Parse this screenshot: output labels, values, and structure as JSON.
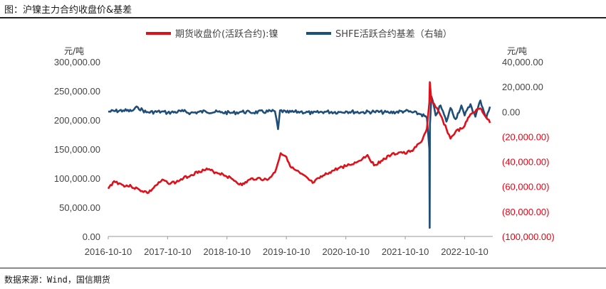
{
  "caption": "图：沪镍主力合约收盘价&基差",
  "source": "数据来源：Wind，国信期货",
  "chart_data": {
    "type": "line",
    "title": "",
    "x_ticks": [
      "2016-10-10",
      "2017-10-10",
      "2018-10-10",
      "2019-10-10",
      "2020-10-10",
      "2021-10-10",
      "2022-10-10"
    ],
    "x_range": [
      "2016-10-10",
      "2023-04-01"
    ],
    "left_axis": {
      "unit": "元/吨",
      "ylim": [
        0,
        300000
      ],
      "tick_labels": [
        "0.00",
        "50,000.00",
        "100,000.00",
        "150,000.00",
        "200,000.00",
        "250,000.00",
        "300,000.00"
      ],
      "tick_values": [
        0,
        50000,
        100000,
        150000,
        200000,
        250000,
        300000
      ]
    },
    "right_axis": {
      "unit": "元/吨",
      "ylim": [
        -100000,
        40000
      ],
      "tick_labels": [
        "(100,000.00)",
        "(80,000.00)",
        "(60,000.00)",
        "(40,000.00)",
        "(20,000.00)",
        "0.00",
        "20,000.00",
        "40,000.00"
      ],
      "tick_values": [
        -100000,
        -80000,
        -60000,
        -40000,
        -20000,
        0,
        20000,
        40000
      ],
      "negative_color": "#e60012",
      "positive_color": "#444444"
    },
    "legend_position": "top",
    "grid": false,
    "series": [
      {
        "name": "期货收盘价(活跃合约):镍",
        "axis": "left",
        "color": "#e0101a",
        "points": [
          [
            "2016-10-10",
            82000
          ],
          [
            "2016-11-15",
            95000
          ],
          [
            "2017-01-10",
            88000
          ],
          [
            "2017-03-01",
            86000
          ],
          [
            "2017-04-20",
            80000
          ],
          [
            "2017-06-15",
            75000
          ],
          [
            "2017-08-01",
            88000
          ],
          [
            "2017-09-15",
            97000
          ],
          [
            "2017-10-10",
            92000
          ],
          [
            "2017-12-01",
            93000
          ],
          [
            "2018-01-15",
            100000
          ],
          [
            "2018-03-01",
            105000
          ],
          [
            "2018-04-20",
            112000
          ],
          [
            "2018-06-15",
            115000
          ],
          [
            "2018-08-01",
            110000
          ],
          [
            "2018-09-15",
            107000
          ],
          [
            "2018-11-15",
            98000
          ],
          [
            "2019-01-10",
            88000
          ],
          [
            "2019-03-01",
            98000
          ],
          [
            "2019-04-15",
            100000
          ],
          [
            "2019-06-15",
            97000
          ],
          [
            "2019-08-01",
            110000
          ],
          [
            "2019-09-05",
            143000
          ],
          [
            "2019-10-10",
            137000
          ],
          [
            "2019-11-10",
            118000
          ],
          [
            "2020-01-05",
            108000
          ],
          [
            "2020-03-20",
            92000
          ],
          [
            "2020-05-01",
            100000
          ],
          [
            "2020-07-01",
            110000
          ],
          [
            "2020-09-01",
            118000
          ],
          [
            "2020-11-01",
            123000
          ],
          [
            "2020-12-20",
            128000
          ],
          [
            "2021-02-20",
            140000
          ],
          [
            "2021-04-01",
            122000
          ],
          [
            "2021-05-15",
            130000
          ],
          [
            "2021-07-15",
            140000
          ],
          [
            "2021-09-15",
            145000
          ],
          [
            "2021-10-10",
            142000
          ],
          [
            "2021-12-01",
            150000
          ],
          [
            "2022-01-15",
            162000
          ],
          [
            "2022-02-20",
            185000
          ],
          [
            "2022-03-07",
            230000
          ],
          [
            "2022-03-10",
            265000
          ],
          [
            "2022-03-20",
            232000
          ],
          [
            "2022-04-15",
            222000
          ],
          [
            "2022-05-15",
            208000
          ],
          [
            "2022-06-20",
            185000
          ],
          [
            "2022-07-15",
            168000
          ],
          [
            "2022-08-15",
            180000
          ],
          [
            "2022-09-20",
            185000
          ],
          [
            "2022-10-10",
            190000
          ],
          [
            "2022-11-15",
            210000
          ],
          [
            "2022-12-15",
            215000
          ],
          [
            "2023-01-15",
            220000
          ],
          [
            "2023-02-20",
            205000
          ],
          [
            "2023-03-15",
            195000
          ]
        ]
      },
      {
        "name": "SHFE活跃合约基差（右轴）",
        "axis": "right",
        "color": "#1f4e79",
        "points": [
          [
            "2016-10-10",
            0
          ],
          [
            "2017-01-10",
            1000
          ],
          [
            "2017-03-01",
            500
          ],
          [
            "2017-04-10",
            3500
          ],
          [
            "2017-06-01",
            -500
          ],
          [
            "2017-09-01",
            0
          ],
          [
            "2017-10-10",
            -800
          ],
          [
            "2018-01-15",
            300
          ],
          [
            "2018-03-01",
            -1000
          ],
          [
            "2018-06-01",
            200
          ],
          [
            "2018-09-01",
            -500
          ],
          [
            "2018-11-15",
            -1000
          ],
          [
            "2019-01-10",
            0
          ],
          [
            "2019-03-01",
            -600
          ],
          [
            "2019-08-01",
            300
          ],
          [
            "2019-08-20",
            -14000
          ],
          [
            "2019-09-01",
            1000
          ],
          [
            "2019-10-10",
            -600
          ],
          [
            "2020-01-05",
            0
          ],
          [
            "2020-03-20",
            -1200
          ],
          [
            "2020-06-01",
            0
          ],
          [
            "2020-09-01",
            -400
          ],
          [
            "2020-10-10",
            300
          ],
          [
            "2021-01-10",
            -500
          ],
          [
            "2021-04-01",
            0
          ],
          [
            "2021-07-01",
            -800
          ],
          [
            "2021-10-10",
            500
          ],
          [
            "2022-01-15",
            -2000
          ],
          [
            "2022-02-20",
            -5000
          ],
          [
            "2022-03-07",
            -30000
          ],
          [
            "2022-03-09",
            -93000
          ],
          [
            "2022-03-11",
            -10000
          ],
          [
            "2022-03-20",
            12000
          ],
          [
            "2022-04-15",
            -3000
          ],
          [
            "2022-05-15",
            5000
          ],
          [
            "2022-06-20",
            -8000
          ],
          [
            "2022-07-15",
            3000
          ],
          [
            "2022-08-15",
            -6000
          ],
          [
            "2022-09-20",
            5000
          ],
          [
            "2022-10-10",
            -3000
          ],
          [
            "2022-11-15",
            6000
          ],
          [
            "2022-12-15",
            -4000
          ],
          [
            "2023-01-15",
            9000
          ],
          [
            "2023-02-20",
            -5000
          ],
          [
            "2023-03-15",
            4000
          ]
        ]
      }
    ]
  }
}
